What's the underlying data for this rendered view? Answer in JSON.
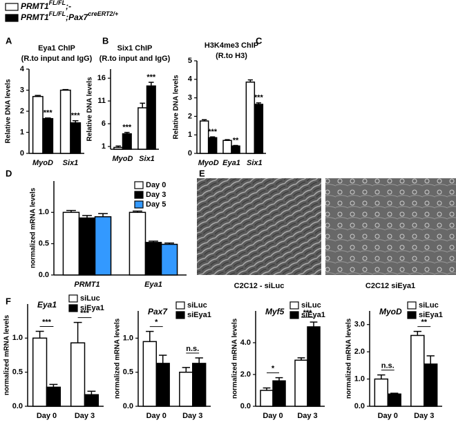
{
  "legend": [
    {
      "color": "#ffffff",
      "parts": [
        "PRMT1",
        "FL/FL",
        ";-"
      ]
    },
    {
      "color": "#000000",
      "parts": [
        "PRMT1",
        "FL/FL",
        ";Pax7",
        "creERT2/+"
      ]
    }
  ],
  "images": {
    "panel": "E",
    "captions": [
      "C2C12 - siLuc",
      "C2C12 siEya1"
    ]
  },
  "chart_data": [
    {
      "type": "bar",
      "panel": "A",
      "title": "Eya1 ChIP",
      "subtitle": "(R.to input and IgG)",
      "ylabel": "Relative DNA levels",
      "categories": [
        "MyoD",
        "Six1"
      ],
      "series": [
        {
          "color": "#ffffff",
          "values": [
            2.7,
            3.0
          ],
          "errors": [
            0.05,
            0.03
          ]
        },
        {
          "color": "#000000",
          "values": [
            1.65,
            1.45
          ],
          "errors": [
            0.03,
            0.1
          ],
          "annotations": [
            "***",
            "***"
          ]
        }
      ],
      "ylim": [
        0,
        4
      ],
      "yticks": [
        0,
        1,
        2,
        3,
        4
      ]
    },
    {
      "type": "bar",
      "panel": "B",
      "title": "Six1 ChIP",
      "subtitle": "(R.to input and IgG)",
      "ylabel": "Relative DNA levels",
      "categories": [
        "MyoD",
        "Six1"
      ],
      "series": [
        {
          "color": "#ffffff",
          "values": [
            0.8,
            9.5
          ],
          "errors": [
            0.3,
            1.0
          ]
        },
        {
          "color": "#000000",
          "values": [
            3.8,
            14.3
          ],
          "errors": [
            0.3,
            0.8
          ],
          "annotations": [
            "***",
            "***"
          ]
        }
      ],
      "ylim": [
        0.4,
        18
      ],
      "yticks": [
        1,
        6,
        11,
        16
      ]
    },
    {
      "type": "bar",
      "panel": "C",
      "title": "H3K4me3 ChIP",
      "subtitle": "(R.to H3)",
      "ylabel": "Relative DNA levels",
      "categories": [
        "MyoD",
        "Eya1",
        "Six1"
      ],
      "series": [
        {
          "color": "#ffffff",
          "values": [
            1.75,
            0.7,
            3.85
          ],
          "errors": [
            0.07,
            0.04,
            0.12
          ]
        },
        {
          "color": "#000000",
          "values": [
            0.85,
            0.4,
            2.65
          ],
          "errors": [
            0.04,
            0.03,
            0.08
          ],
          "annotations": [
            "***",
            "**",
            "***"
          ]
        }
      ],
      "ylim": [
        0,
        5
      ],
      "yticks": [
        0,
        1,
        2,
        3,
        4,
        5
      ]
    },
    {
      "type": "bar",
      "panel": "D",
      "ylabel": "normalized mRNA levels",
      "categories": [
        "PRMT1",
        "Eya1"
      ],
      "series": [
        {
          "name": "Day 0",
          "color": "#ffffff",
          "values": [
            1.0,
            1.0
          ],
          "errors": [
            0.03,
            0.02
          ]
        },
        {
          "name": "Day 3",
          "color": "#000000",
          "values": [
            0.91,
            0.52
          ],
          "errors": [
            0.04,
            0.02
          ]
        },
        {
          "name": "Day 5",
          "color": "#3399ff",
          "values": [
            0.93,
            0.49
          ],
          "errors": [
            0.05,
            0.02
          ]
        }
      ],
      "ylim": [
        0,
        1.5
      ],
      "yticks": [
        {
          "value": 0,
          "label": "0.0"
        },
        {
          "value": 0.5,
          "label": "0.5"
        },
        {
          "value": 1,
          "label": "1.0"
        }
      ]
    },
    {
      "type": "bar",
      "panel": "F",
      "title": "Eya1",
      "ylabel": "normalized mRNA levels",
      "categories": [
        "Day 0",
        "Day 3"
      ],
      "series": [
        {
          "name": "siLuc",
          "color": "#ffffff",
          "values": [
            1.0,
            0.93
          ],
          "errors": [
            0.1,
            0.3
          ]
        },
        {
          "name": "siEya1",
          "color": "#000000",
          "values": [
            0.28,
            0.17
          ],
          "errors": [
            0.04,
            0.05
          ]
        }
      ],
      "annotations": [
        "***",
        "***"
      ],
      "ylim": [
        0,
        1.5
      ],
      "yticks": [
        {
          "value": 0,
          "label": "0.0"
        },
        {
          "value": 0.5,
          "label": "0.5"
        },
        {
          "value": 1,
          "label": "1.0"
        }
      ]
    },
    {
      "type": "bar",
      "title": "Pax7",
      "ylabel": "normalized mRNA levels",
      "categories": [
        "Day 0",
        "Day 3"
      ],
      "series": [
        {
          "name": "siLuc",
          "color": "#ffffff",
          "values": [
            0.95,
            0.5
          ],
          "errors": [
            0.15,
            0.07
          ]
        },
        {
          "name": "siEya1",
          "color": "#000000",
          "values": [
            0.63,
            0.63
          ],
          "errors": [
            0.12,
            0.08
          ]
        }
      ],
      "annotations": [
        "*",
        "n.s."
      ],
      "ylim": [
        0,
        1.4
      ],
      "yticks": [
        {
          "value": 0,
          "label": "0.0"
        },
        {
          "value": 0.5,
          "label": "0.5"
        },
        {
          "value": 1,
          "label": "1.0"
        }
      ]
    },
    {
      "type": "bar",
      "title": "Myf5",
      "ylabel": "normalized mRNA levels",
      "categories": [
        "Day 0",
        "Day 3"
      ],
      "series": [
        {
          "name": "siLuc",
          "color": "#ffffff",
          "values": [
            1.0,
            2.9
          ],
          "errors": [
            0.15,
            0.15
          ]
        },
        {
          "name": "siEya1",
          "color": "#000000",
          "values": [
            1.6,
            5.0
          ],
          "errors": [
            0.2,
            0.3
          ]
        }
      ],
      "annotations": [
        "*",
        "***"
      ],
      "ylim": [
        0,
        6
      ],
      "yticks": [
        {
          "value": 0,
          "label": "0.0"
        },
        {
          "value": 2,
          "label": "2.0"
        },
        {
          "value": 4,
          "label": "4.0"
        }
      ]
    },
    {
      "type": "bar",
      "title": "MyoD",
      "ylabel": "normalized mRNA levels",
      "categories": [
        "Day 0",
        "Day 3"
      ],
      "series": [
        {
          "name": "siLuc",
          "color": "#ffffff",
          "values": [
            1.0,
            2.6
          ],
          "errors": [
            0.15,
            0.15
          ]
        },
        {
          "name": "siEya1",
          "color": "#000000",
          "values": [
            0.45,
            1.55
          ],
          "errors": [
            0.03,
            0.3
          ]
        }
      ],
      "annotations": [
        "n.s.",
        "**"
      ],
      "ylim": [
        0,
        3.5
      ],
      "yticks": [
        {
          "value": 0,
          "label": "0.0"
        },
        {
          "value": 1,
          "label": "1.0"
        },
        {
          "value": 2,
          "label": "2.0"
        },
        {
          "value": 3,
          "label": "3.0"
        }
      ]
    }
  ]
}
